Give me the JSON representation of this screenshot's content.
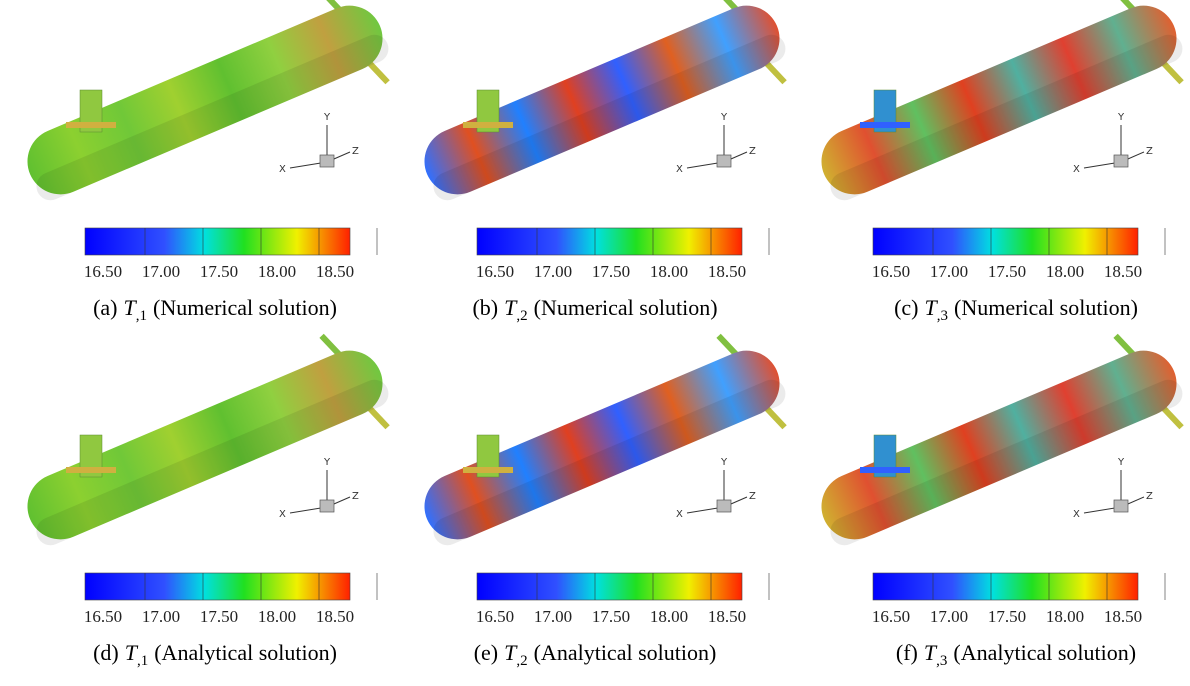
{
  "panels": [
    {
      "label": "(a)",
      "symbol": "T",
      "subscript": ",1",
      "solution": "(Numerical solution)",
      "colorbar": [
        "16.50",
        "17.00",
        "17.50",
        "18.00",
        "18.50"
      ],
      "axes": {
        "x": "X",
        "y": "Y",
        "z": "Z"
      }
    },
    {
      "label": "(b)",
      "symbol": "T",
      "subscript": ",2",
      "solution": "(Numerical solution)",
      "colorbar": [
        "16.50",
        "17.00",
        "17.50",
        "18.00",
        "18.50"
      ],
      "axes": {
        "x": "X",
        "y": "Y",
        "z": "Z"
      }
    },
    {
      "label": "(c)",
      "symbol": "T",
      "subscript": ",3",
      "solution": "(Numerical solution)",
      "colorbar": [
        "16.50",
        "17.00",
        "17.50",
        "18.00",
        "18.50"
      ],
      "axes": {
        "x": "X",
        "y": "Y",
        "z": "Z"
      }
    },
    {
      "label": "(d)",
      "symbol": "T",
      "subscript": ",1",
      "solution": "(Analytical solution)",
      "colorbar": [
        "16.50",
        "17.00",
        "17.50",
        "18.00",
        "18.50"
      ],
      "axes": {
        "x": "X",
        "y": "Y",
        "z": "Z"
      }
    },
    {
      "label": "(e)",
      "symbol": "T",
      "subscript": ",2",
      "solution": "(Analytical solution)",
      "colorbar": [
        "16.50",
        "17.00",
        "17.50",
        "18.00",
        "18.50"
      ],
      "axes": {
        "x": "X",
        "y": "Y",
        "z": "Z"
      }
    },
    {
      "label": "(f)",
      "symbol": "T",
      "subscript": ",3",
      "solution": "(Analytical solution)",
      "colorbar": [
        "16.50",
        "17.00",
        "17.50",
        "18.00",
        "18.50"
      ],
      "axes": {
        "x": "X",
        "y": "Y",
        "z": "Z"
      }
    }
  ]
}
